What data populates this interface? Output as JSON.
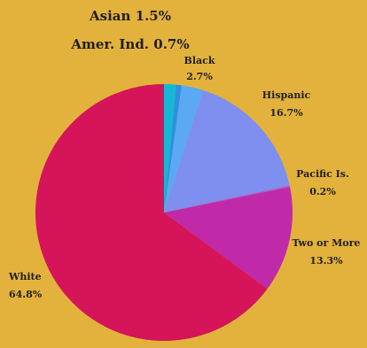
{
  "chart_data": {
    "type": "pie",
    "slices": [
      {
        "label": "Asian",
        "value_label": "1.5%",
        "value": 1.5,
        "color": "#14b8d6"
      },
      {
        "label": "Amer. Ind.",
        "value_label": "0.7%",
        "value": 0.7,
        "color": "#2f8fe0"
      },
      {
        "label": "Black",
        "value_label": "2.7%",
        "value": 2.7,
        "color": "#5aa9f2"
      },
      {
        "label": "Hispanic",
        "value_label": "16.7%",
        "value": 16.7,
        "color": "#7e8ff0"
      },
      {
        "label": "Pacific Is.",
        "value_label": "0.2%",
        "value": 0.2,
        "color": "#a85ad6"
      },
      {
        "label": "Two or More",
        "value_label": "13.3%",
        "value": 13.3,
        "color": "#c02aa8"
      },
      {
        "label": "White",
        "value_label": "64.8%",
        "value": 64.8,
        "color": "#d51459"
      }
    ],
    "legend": "none",
    "start": "top",
    "direction": "clockwise"
  }
}
